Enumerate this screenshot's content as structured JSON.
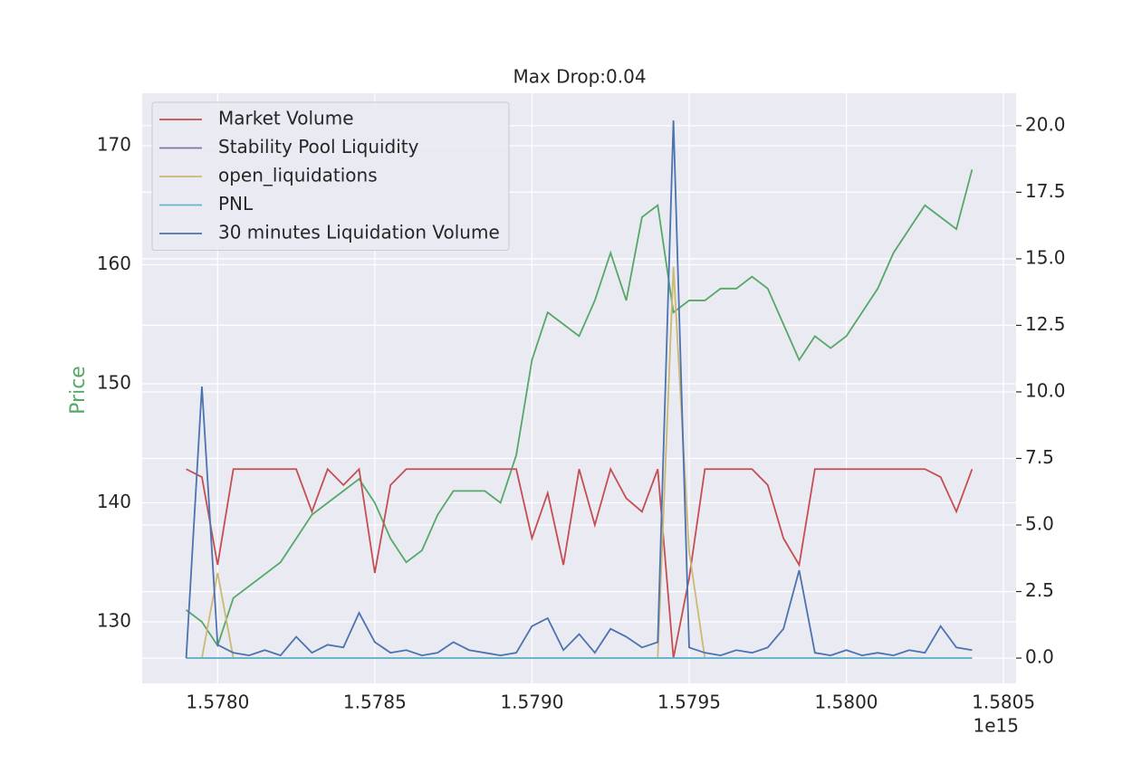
{
  "chart_data": {
    "type": "line",
    "title": "Max Drop:0.04",
    "ylabel": "Price",
    "x_offset_label": "1e15",
    "x": [
      1.5779,
      1.57795,
      1.578,
      1.57805,
      1.5781,
      1.57815,
      1.5782,
      1.57825,
      1.5783,
      1.57835,
      1.5784,
      1.57845,
      1.5785,
      1.57855,
      1.5786,
      1.57865,
      1.5787,
      1.57875,
      1.5788,
      1.57885,
      1.5789,
      1.57895,
      1.579,
      1.57905,
      1.5791,
      1.57915,
      1.5792,
      1.57925,
      1.5793,
      1.57935,
      1.5794,
      1.57945,
      1.5795,
      1.57955,
      1.5796,
      1.57965,
      1.5797,
      1.57975,
      1.5798,
      1.57985,
      1.5799,
      1.57995,
      1.58,
      1.58005,
      1.5801,
      1.58015,
      1.5802,
      1.58025,
      1.5803,
      1.58035,
      1.5804
    ],
    "price": {
      "color": "#55a868",
      "values": [
        131,
        130,
        128,
        132,
        133,
        134,
        135,
        137,
        139,
        140,
        141,
        142,
        140,
        137,
        135,
        136,
        139,
        141,
        141,
        141,
        140,
        144,
        152,
        156,
        155,
        154,
        157,
        161,
        157,
        164,
        165,
        156,
        157,
        157,
        158,
        158,
        159,
        158,
        155,
        152,
        154,
        153,
        154,
        156,
        158,
        161,
        163,
        165,
        164,
        163,
        168
      ]
    },
    "series": [
      {
        "name": "Market Volume",
        "color": "#c44e52",
        "axis": "y2",
        "values": [
          7.1,
          6.8,
          3.5,
          7.1,
          7.1,
          7.1,
          7.1,
          7.1,
          5.5,
          7.1,
          6.5,
          7.1,
          3.2,
          6.5,
          7.1,
          7.1,
          7.1,
          7.1,
          7.1,
          7.1,
          7.1,
          7.1,
          4.5,
          6.2,
          3.5,
          7.1,
          5.0,
          7.1,
          6.0,
          5.5,
          7.1,
          0.0,
          3.0,
          7.1,
          7.1,
          7.1,
          7.1,
          6.5,
          4.5,
          3.5,
          7.1,
          7.1,
          7.1,
          7.1,
          7.1,
          7.1,
          7.1,
          7.1,
          6.8,
          5.5,
          7.1
        ]
      },
      {
        "name": "Stability Pool Liquidity",
        "color": "#8172b3",
        "axis": "y2",
        "values": [
          0,
          0,
          0,
          0,
          0,
          0,
          0,
          0,
          0,
          0,
          0,
          0,
          0,
          0,
          0,
          0,
          0,
          0,
          0,
          0,
          0,
          0,
          0,
          0,
          0,
          0,
          0,
          0,
          0,
          0,
          0,
          0,
          0,
          0,
          0,
          0,
          0,
          0,
          0,
          0,
          0,
          0,
          0,
          0,
          0,
          0,
          0,
          0,
          0,
          0,
          0
        ]
      },
      {
        "name": "open_liquidations",
        "color": "#ccb974",
        "axis": "y2",
        "values": [
          0,
          0,
          3.2,
          0,
          0,
          0,
          0,
          0,
          0,
          0,
          0,
          0,
          0,
          0,
          0,
          0,
          0,
          0,
          0,
          0,
          0,
          0,
          0,
          0,
          0,
          0,
          0,
          0,
          0,
          0,
          0,
          14.7,
          4.0,
          0,
          0,
          0,
          0,
          0,
          0,
          0,
          0,
          0,
          0,
          0,
          0,
          0,
          0,
          0,
          0,
          0,
          0
        ]
      },
      {
        "name": "PNL",
        "color": "#64b5cd",
        "axis": "y2",
        "values": [
          0,
          0,
          0,
          0,
          0,
          0,
          0,
          0,
          0,
          0,
          0,
          0,
          0,
          0,
          0,
          0,
          0,
          0,
          0,
          0,
          0,
          0,
          0,
          0,
          0,
          0,
          0,
          0,
          0,
          0,
          0,
          0,
          0,
          0,
          0,
          0,
          0,
          0,
          0,
          0,
          0,
          0,
          0,
          0,
          0,
          0,
          0,
          0,
          0,
          0,
          0
        ]
      },
      {
        "name": "30 minutes Liquidation Volume",
        "color": "#4c72b0",
        "axis": "y2",
        "values": [
          0,
          10.2,
          0.5,
          0.2,
          0.1,
          0.3,
          0.1,
          0.8,
          0.2,
          0.5,
          0.4,
          1.7,
          0.6,
          0.2,
          0.3,
          0.1,
          0.2,
          0.6,
          0.3,
          0.2,
          0.1,
          0.2,
          1.2,
          1.5,
          0.3,
          0.9,
          0.2,
          1.1,
          0.8,
          0.4,
          0.6,
          20.2,
          0.4,
          0.2,
          0.1,
          0.3,
          0.2,
          0.4,
          1.1,
          3.3,
          0.2,
          0.1,
          0.3,
          0.1,
          0.2,
          0.1,
          0.3,
          0.2,
          1.2,
          0.4,
          0.3
        ]
      }
    ],
    "xlim": [
      1.57776,
      1.58054
    ],
    "xticks": [
      {
        "value": 1.578,
        "label": "1.5780"
      },
      {
        "value": 1.5785,
        "label": "1.5785"
      },
      {
        "value": 1.579,
        "label": "1.5790"
      },
      {
        "value": 1.5795,
        "label": "1.5795"
      },
      {
        "value": 1.58,
        "label": "1.5800"
      },
      {
        "value": 1.5805,
        "label": "1.5805"
      }
    ],
    "ylim": [
      124.83,
      174.41
    ],
    "yticks": [
      130,
      140,
      150,
      160,
      170
    ],
    "y2lim": [
      -0.95,
      21.22
    ],
    "y2ticks": [
      {
        "value": 0,
        "label": "0.0"
      },
      2.5,
      {
        "value": 5,
        "label": "5.0"
      },
      7.5,
      {
        "value": 10,
        "label": "10.0"
      },
      12.5,
      {
        "value": 15,
        "label": "15.0"
      },
      17.5,
      {
        "value": 20,
        "label": "20.0"
      }
    ],
    "grid": true,
    "legend": "upper left"
  }
}
